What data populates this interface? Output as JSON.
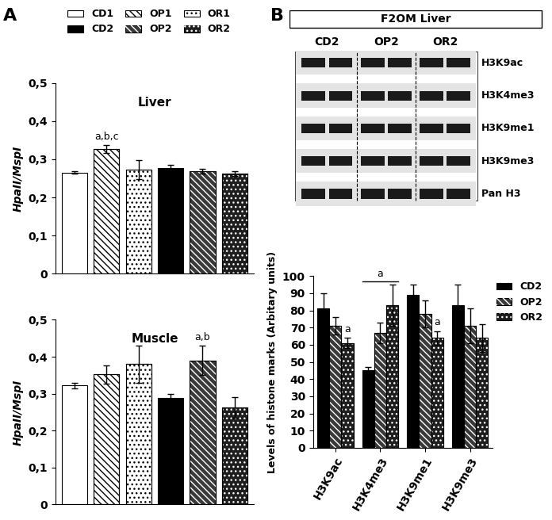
{
  "panel_labels": [
    "A",
    "B"
  ],
  "chart_data": [
    {
      "type": "bar",
      "title": "Liver",
      "y_label": "HpaII/MspI",
      "categories": [
        null
      ],
      "tick_labels": "y",
      "legend": "upper center",
      "ylim": [
        0,
        0.5
      ],
      "yticks": [
        0,
        {
          "value": 0.1,
          "label": "0,1"
        },
        {
          "value": 0.2,
          "label": "0,2"
        },
        {
          "value": 0.3,
          "label": "0,3"
        },
        {
          "value": 0.4,
          "label": "0,4"
        },
        {
          "value": 0.5,
          "label": "0,5"
        }
      ],
      "series": [
        {
          "name": "CD1",
          "color": "#ffffff",
          "values": [
            0.265
          ],
          "errors": [
            0.003
          ]
        },
        {
          "name": "OP1",
          "color": "#ffffff",
          "values": [
            0.327
          ],
          "errors": [
            0.01
          ]
        },
        {
          "name": "OR1",
          "color": "#ffffff",
          "values": [
            0.272
          ],
          "errors": [
            0.025
          ]
        },
        {
          "name": "CD2",
          "color": "#000000",
          "values": [
            0.278
          ],
          "errors": [
            0.008
          ]
        },
        {
          "name": "OP2",
          "color": "#3a3a3a",
          "values": [
            0.268
          ],
          "errors": [
            0.006
          ]
        },
        {
          "name": "OR2",
          "color": "#1e1e1e",
          "values": [
            0.262
          ],
          "errors": [
            0.006
          ]
        }
      ],
      "annotations": [
        {
          "text": "a,b,c",
          "category": null,
          "series": "OP1"
        }
      ]
    },
    {
      "type": "bar",
      "title": "Muscle",
      "y_label": "HpaII/MspI",
      "categories": [
        null
      ],
      "tick_labels": "y",
      "ylim": [
        0,
        0.5
      ],
      "yticks": [
        0,
        {
          "value": 0.1,
          "label": "0,1"
        },
        {
          "value": 0.2,
          "label": "0,2"
        },
        {
          "value": 0.3,
          "label": "0,3"
        },
        {
          "value": 0.4,
          "label": "0,4"
        },
        {
          "value": 0.5,
          "label": "0,5"
        }
      ],
      "series": [
        {
          "name": "CD1",
          "color": "#ffffff",
          "values": [
            0.322
          ],
          "errors": [
            0.007
          ]
        },
        {
          "name": "OP1",
          "color": "#ffffff",
          "values": [
            0.352
          ],
          "errors": [
            0.025
          ]
        },
        {
          "name": "OR1",
          "color": "#ffffff",
          "values": [
            0.38
          ],
          "errors": [
            0.05
          ]
        },
        {
          "name": "CD2",
          "color": "#000000",
          "values": [
            0.288
          ],
          "errors": [
            0.012
          ]
        },
        {
          "name": "OP2",
          "color": "#3a3a3a",
          "values": [
            0.39
          ],
          "errors": [
            0.04
          ]
        },
        {
          "name": "OR2",
          "color": "#1e1e1e",
          "values": [
            0.262
          ],
          "errors": [
            0.028
          ]
        }
      ],
      "annotations": [
        {
          "text": "a,b",
          "category": null,
          "series": "OP2"
        }
      ]
    },
    {
      "type": "bar",
      "y_label": "Levels of histone marks (Arbitary units)",
      "categories": [
        "H3K9ac",
        "H3K4me3",
        "H3K9me1",
        "H3K9me3"
      ],
      "legend": "upper right",
      "ylim": [
        0,
        100
      ],
      "yticks": [
        0,
        10,
        20,
        30,
        40,
        50,
        60,
        70,
        80,
        90,
        100
      ],
      "series": [
        {
          "name": "CD2",
          "color": "#000000",
          "values": [
            81,
            45,
            89,
            83
          ],
          "errors": [
            9,
            2,
            6,
            12
          ]
        },
        {
          "name": "OP2",
          "color": "#3a3a3a",
          "values": [
            71,
            67,
            78,
            71
          ],
          "errors": [
            5,
            6,
            8,
            10
          ]
        },
        {
          "name": "OR2",
          "color": "#1e1e1e",
          "values": [
            61,
            83,
            64,
            64
          ],
          "errors": [
            3,
            12,
            4,
            8
          ]
        }
      ],
      "annotations": [
        {
          "text": "a",
          "category": "H3K9ac",
          "series": "OR2"
        },
        {
          "text": "a",
          "category": "H3K4me3",
          "series": null
        },
        {
          "text": "a",
          "category": "H3K9me1",
          "series": "OR2"
        }
      ]
    }
  ],
  "blot": {
    "title": "F2OM Liver",
    "lanes": [
      "CD2",
      "OP2",
      "OR2"
    ],
    "rows": [
      "H3K9ac",
      "H3K4me3",
      "H3K9me1",
      "H3K9me3",
      "Pan H3"
    ]
  }
}
